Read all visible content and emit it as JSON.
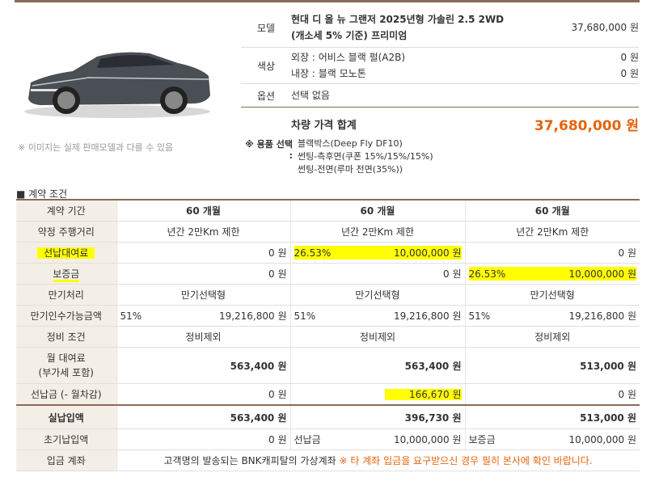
{
  "car_note": "※ 이미지는 실제 판매모델과 다를 수 있음",
  "spec": {
    "model_label": "모델",
    "model_name": "현대 디 올 뉴 그랜저 2025년형 가솔린 2.5 2WD (개소세 5% 기준) 프리미엄",
    "model_price": "37,680,000 원",
    "color_label": "색상",
    "exterior": "외장 : 어비스 블랙 펄(A2B)",
    "exterior_price": "0 원",
    "interior": "내장 : 블랙 모노톤",
    "interior_price": "0 원",
    "option_label": "옵션",
    "option_value": "선택 없음",
    "total_label": "차량 가격 합계",
    "total_price": "37,680,000 원"
  },
  "accessories": {
    "label": "※ 용품 선택 :",
    "items": [
      "블랙박스(Deep Fly DF10)",
      "썬팅-측후면(쿠폰 15%/15%/15%)",
      "썬팅-전면(루마 전면(35%))"
    ]
  },
  "section_title": "■ 계약 조건",
  "terms": {
    "period_label": "계약 기간",
    "periods": [
      "60 개월",
      "60 개월",
      "60 개월"
    ],
    "mileage_label": "약정 주행거리",
    "mileage": [
      "년간 2만Km 제한",
      "년간 2만Km 제한",
      "년간 2만Km 제한"
    ],
    "prepay_label": "선납대여료",
    "prepay": [
      {
        "pct": "",
        "amount": "0 원"
      },
      {
        "pct": "26.53%",
        "amount": "10,000,000 원"
      },
      {
        "pct": "",
        "amount": "0 원"
      }
    ],
    "deposit_label": "보증금",
    "deposit": [
      {
        "pct": "",
        "amount": "0 원"
      },
      {
        "pct": "",
        "amount": "0 원"
      },
      {
        "pct": "26.53%",
        "amount": "10,000,000 원"
      }
    ],
    "maturity_label": "만기처리",
    "maturity": [
      "만기선택형",
      "만기선택형",
      "만기선택형"
    ],
    "residual_label": "만기인수가능금액",
    "residual": [
      {
        "pct": "51%",
        "amount": "19,216,800 원"
      },
      {
        "pct": "51%",
        "amount": "19,216,800 원"
      },
      {
        "pct": "51%",
        "amount": "19,216,800 원"
      }
    ],
    "maint_label": "정비 조건",
    "maint": [
      "정비제외",
      "정비제외",
      "정비제외"
    ],
    "monthly_label_1": "월 대여료",
    "monthly_label_2": "(부가세 포함)",
    "monthly": [
      "563,400 원",
      "563,400 원",
      "513,000 원"
    ],
    "prepaid_label": "선납금 (- 월차감)",
    "prepaid": [
      "0 원",
      "166,670 원",
      "0 원"
    ],
    "actual_label": "실납입액",
    "actual": [
      "563,400 원",
      "396,730 원",
      "513,000 원"
    ],
    "initial_label": "초기납입액",
    "initial": [
      {
        "kind": "",
        "amount": "0 원"
      },
      {
        "kind": "선납금",
        "amount": "10,000,000 원"
      },
      {
        "kind": "보증금",
        "amount": "10,000,000 원"
      }
    ],
    "account_label": "입금 계좌",
    "account_text": "고객명의 발송되는 BNK캐피탈의 가상계좌",
    "account_warn": "※ 타 계좌 입금을 요구받으신 경우 필히 본사에 확인 바랍니다."
  }
}
